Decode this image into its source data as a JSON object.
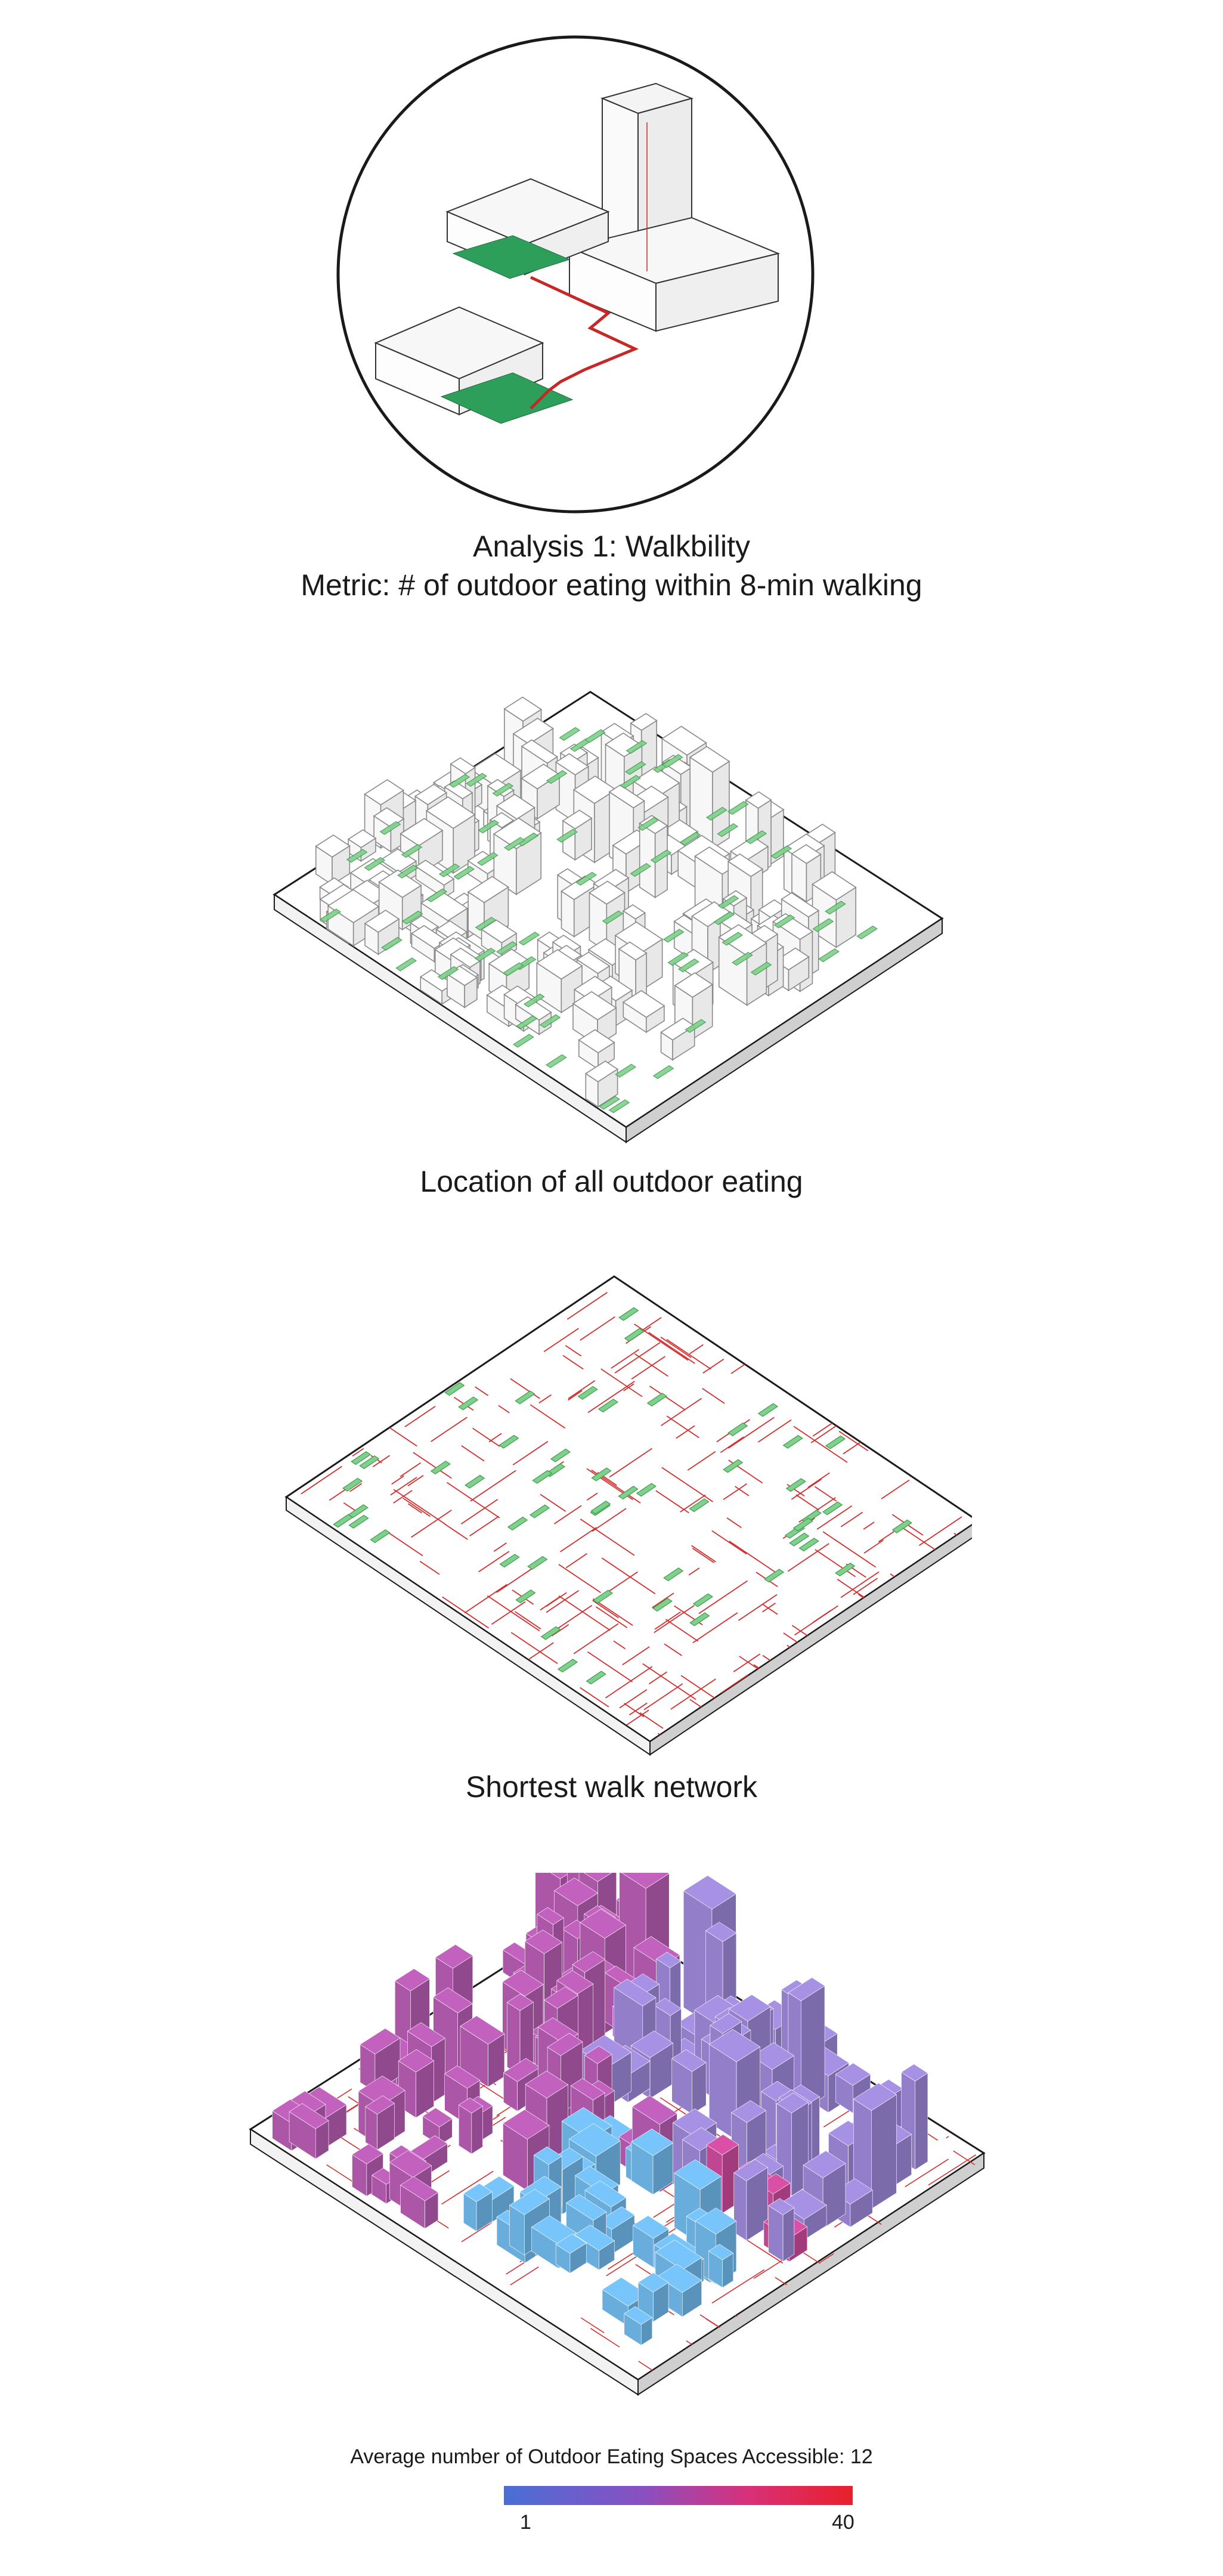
{
  "analysis": {
    "title": "Analysis 1: Walkbility",
    "metric": "Metric: # of outdoor eating within 8-min walking"
  },
  "panels": [
    {
      "caption": "Location of all outdoor eating"
    },
    {
      "caption": "Shortest walk network"
    }
  ],
  "legend": {
    "title": "Average number of Outdoor Eating Spaces Accessible: 12",
    "min_label": "1",
    "max_label": "40",
    "gradient_colors": [
      "#4a6fd6",
      "#8a4fc0",
      "#d9307a",
      "#e8202a"
    ]
  },
  "colors": {
    "outdoor_eating": "#2e9e5b",
    "walk_path": "#d32f2f",
    "building_low": "#6fb6e8",
    "building_mid": "#9b86d4",
    "building_high": "#b45bb0",
    "building_max": "#c94a9a"
  }
}
